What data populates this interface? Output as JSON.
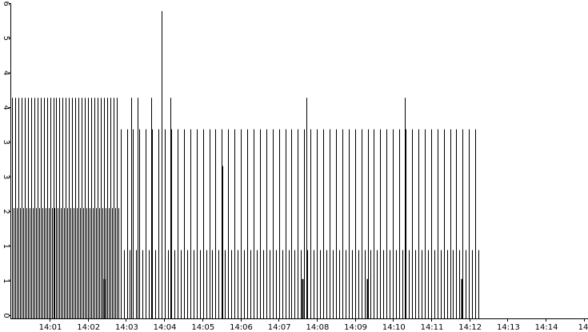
{
  "chart_data": {
    "type": "bar",
    "title": "",
    "xlabel": "",
    "ylabel": "",
    "ylim": [
      0,
      6
    ],
    "y_tick_labels": [
      "0",
      "1",
      "1",
      "2",
      "3",
      "3",
      "4",
      "4",
      "5",
      "6"
    ],
    "x_tick_labels": [
      "14:01",
      "14:02",
      "14:03",
      "14:04",
      "14:05",
      "14:06",
      "14:07",
      "14:08",
      "14:09",
      "14:10",
      "14:11",
      "14:12",
      "14:13",
      "14:14",
      "14"
    ],
    "x_range": [
      "14:00:24",
      "14:15:16"
    ],
    "grid": false,
    "legend": "none",
    "colors": {
      "bars": "#000000",
      "axis": "#000000",
      "background": "#ffffff"
    },
    "series": [
      {
        "segments": [
          {
            "start": "14:00:25",
            "end": "14:03:12",
            "step_s": 2.46,
            "peak": 4.2,
            "mid": 2.1
          },
          {
            "start": "14:03:13",
            "end": "14:12:31",
            "step_s": 4.9,
            "peak": 3.6,
            "mid": 1.3
          }
        ],
        "spikes": [
          {
            "t": "14:03:30",
            "value": 4.2
          },
          {
            "t": "14:03:40",
            "value": 4.2
          },
          {
            "t": "14:04:00",
            "value": 4.2
          },
          {
            "t": "14:04:17",
            "value": 5.85
          },
          {
            "t": "14:04:17",
            "value": 2.9
          },
          {
            "t": "14:04:30",
            "value": 4.2
          },
          {
            "t": "14:05:50",
            "value": 2.9
          },
          {
            "t": "14:08:00",
            "value": 4.2
          },
          {
            "t": "14:10:33",
            "value": 4.2
          }
        ],
        "small_marks": [
          {
            "t": "14:02:48",
            "value": 0.75
          },
          {
            "t": "14:07:54",
            "value": 0.75
          },
          {
            "t": "14:09:35",
            "value": 0.75
          },
          {
            "t": "14:12:00",
            "value": 0.75
          }
        ]
      }
    ]
  }
}
